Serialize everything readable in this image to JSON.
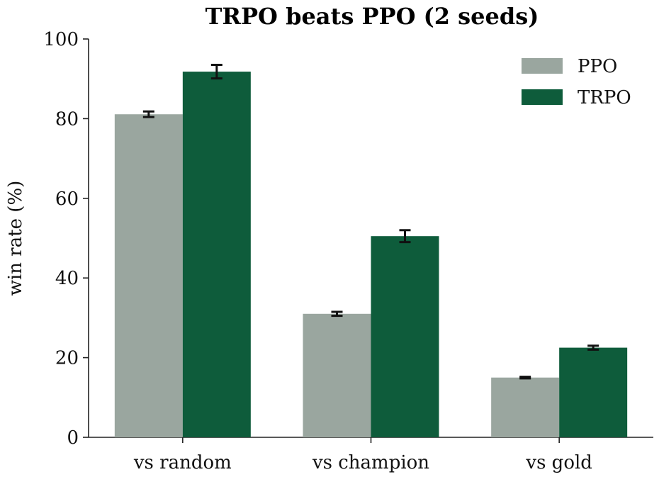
{
  "chart_data": {
    "type": "bar",
    "title": "TRPO beats PPO (2 seeds)",
    "xlabel": "",
    "ylabel": "win rate (%)",
    "ylim": [
      0,
      100
    ],
    "yticks": [
      0,
      20,
      40,
      60,
      80,
      100
    ],
    "categories": [
      "vs random",
      "vs champion",
      "vs gold"
    ],
    "series": [
      {
        "name": "PPO",
        "color": "#9aa69f",
        "values": [
          81.1,
          31.0,
          15.0
        ],
        "errors": [
          0.7,
          0.5,
          0.2
        ]
      },
      {
        "name": "TRPO",
        "color": "#0e5c3b",
        "values": [
          91.8,
          50.5,
          22.5
        ],
        "errors": [
          1.7,
          1.5,
          0.5
        ]
      }
    ],
    "legend_position": "top-right",
    "grid": false
  }
}
